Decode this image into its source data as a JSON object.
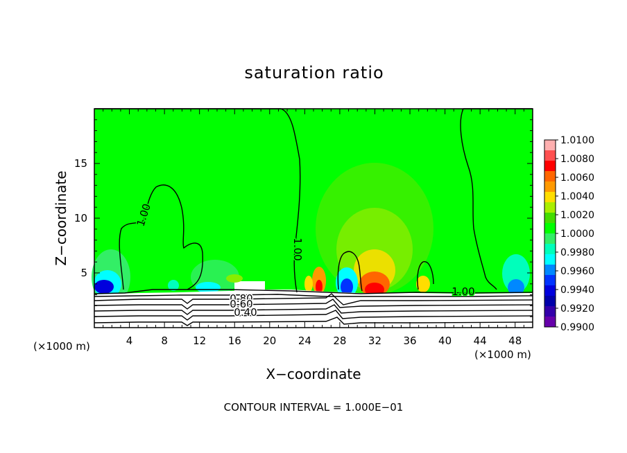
{
  "chart_data": {
    "type": "heatmap",
    "title": "saturation ratio",
    "xlabel": "X−coordinate",
    "ylabel": "Z−coordinate",
    "x_unit_left": "(×1000 m)",
    "x_unit_right": "(×1000 m)",
    "xlim": [
      0,
      50
    ],
    "ylim": [
      0,
      20
    ],
    "x_ticks": [
      4,
      8,
      12,
      16,
      20,
      24,
      28,
      32,
      36,
      40,
      44,
      48
    ],
    "y_ticks": [
      5,
      10,
      15
    ],
    "grid": false,
    "legend": "right",
    "colorbar": {
      "levels": [
        "1.0100",
        "1.0080",
        "1.0060",
        "1.0040",
        "1.0020",
        "1.0000",
        "0.9980",
        "0.9960",
        "0.9940",
        "0.9920",
        "0.9900"
      ],
      "colors": [
        "#ffb0b0",
        "#ff5050",
        "#ff0000",
        "#ff6600",
        "#ff9900",
        "#ffdd00",
        "#aaee00",
        "#44dd00",
        "#00ff00",
        "#33ee66",
        "#00ffbb",
        "#00ffff",
        "#0088ff",
        "#0033ff",
        "#0000dd",
        "#0000aa",
        "#3300aa",
        "#6600aa"
      ]
    },
    "contour_labels": [
      "1.00",
      "1.00",
      "1.00",
      "0.80",
      "0.60",
      "0.40"
    ],
    "footer": "CONTOUR INTERVAL = 1.000E−01"
  }
}
